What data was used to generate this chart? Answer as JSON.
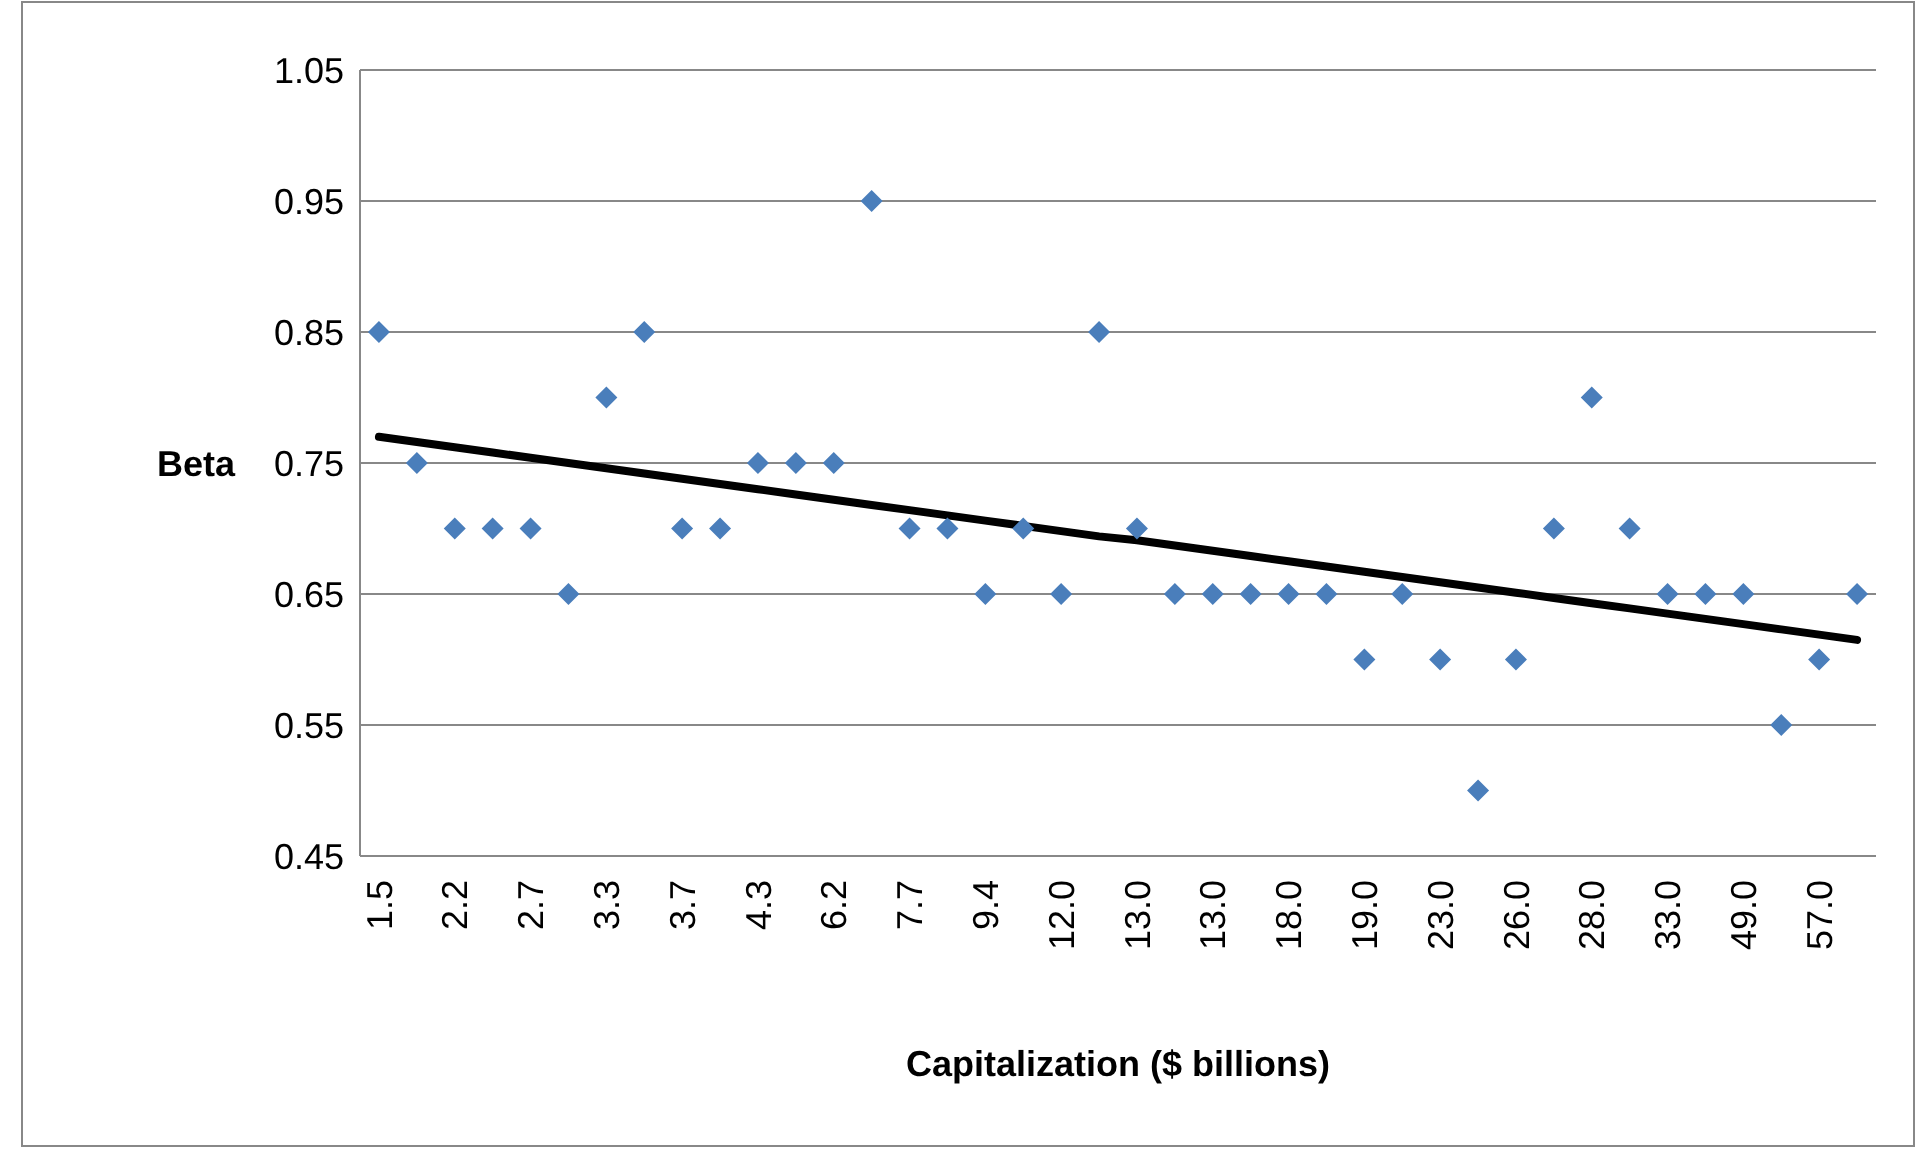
{
  "chart_data": {
    "type": "scatter",
    "xlabel": "Capitalization ($ billions)",
    "ylabel": "Beta",
    "categories": [
      "1.5",
      null,
      "2.2",
      null,
      "2.7",
      null,
      "3.3",
      null,
      "3.7",
      null,
      "4.3",
      null,
      "6.2",
      null,
      "7.7",
      null,
      "9.4",
      null,
      "12.0",
      null,
      "13.0",
      null,
      "13.0",
      null,
      "18.0",
      null,
      "19.0",
      null,
      "23.0",
      null,
      "26.0",
      null,
      "28.0",
      null,
      "33.0",
      null,
      "49.0",
      null,
      "57.0",
      null
    ],
    "series": [
      {
        "color": "#4a7ebb",
        "marker": "diamond",
        "values": [
          0.85,
          0.75,
          0.7,
          0.7,
          0.7,
          0.65,
          0.8,
          0.85,
          0.7,
          0.7,
          0.75,
          0.75,
          0.75,
          0.95,
          0.7,
          0.7,
          0.65,
          0.7,
          0.65,
          0.85,
          0.7,
          0.65,
          0.65,
          0.65,
          0.65,
          0.65,
          0.6,
          0.65,
          0.6,
          0.5,
          0.6,
          0.7,
          0.8,
          0.7,
          0.65,
          0.65,
          0.65,
          0.55,
          0.6,
          0.65
        ]
      },
      {
        "type": "line",
        "color": "#000000",
        "marker": "none",
        "line_style": "solid",
        "values": [
          0.77,
          0.766,
          0.762,
          0.758,
          0.754,
          0.75,
          0.746,
          0.742,
          0.738,
          0.734,
          0.73,
          0.726,
          0.722,
          0.718,
          0.714,
          0.71,
          0.706,
          0.702,
          0.698,
          0.694,
          0.691,
          0.687,
          0.683,
          0.679,
          0.675,
          0.671,
          0.667,
          0.663,
          0.659,
          0.655,
          0.651,
          0.647,
          0.643,
          0.639,
          0.635,
          0.631,
          0.627,
          0.623,
          0.619,
          0.615
        ]
      }
    ],
    "ylim": [
      0.45,
      1.05
    ],
    "yticks": [
      0.45,
      0.55,
      0.65,
      0.75,
      0.85,
      0.95,
      1.05
    ],
    "grid": "y"
  }
}
